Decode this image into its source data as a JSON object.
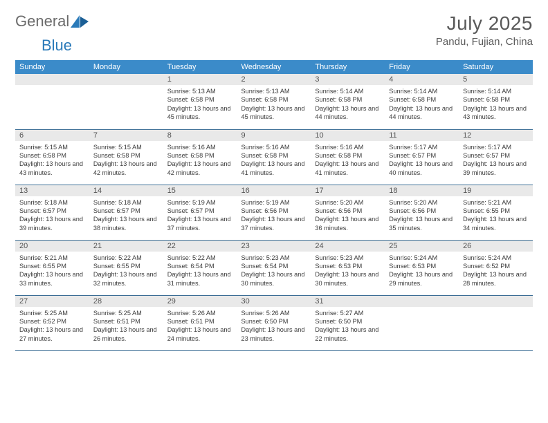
{
  "brand": {
    "name_a": "General",
    "name_b": "Blue"
  },
  "title": "July 2025",
  "location": "Pandu, Fujian, China",
  "colors": {
    "header_bg": "#3b8bc9",
    "header_fg": "#ffffff",
    "row_border": "#3b6d95",
    "daynum_bg": "#e9e9e9",
    "text": "#3a3a3a",
    "brand_gray": "#6b6b6b",
    "brand_blue": "#2a7ab9"
  },
  "day_headers": [
    "Sunday",
    "Monday",
    "Tuesday",
    "Wednesday",
    "Thursday",
    "Friday",
    "Saturday"
  ],
  "weeks": [
    [
      {
        "num": "",
        "sunrise": "",
        "sunset": "",
        "daylight": ""
      },
      {
        "num": "",
        "sunrise": "",
        "sunset": "",
        "daylight": ""
      },
      {
        "num": "1",
        "sunrise": "Sunrise: 5:13 AM",
        "sunset": "Sunset: 6:58 PM",
        "daylight": "Daylight: 13 hours and 45 minutes."
      },
      {
        "num": "2",
        "sunrise": "Sunrise: 5:13 AM",
        "sunset": "Sunset: 6:58 PM",
        "daylight": "Daylight: 13 hours and 45 minutes."
      },
      {
        "num": "3",
        "sunrise": "Sunrise: 5:14 AM",
        "sunset": "Sunset: 6:58 PM",
        "daylight": "Daylight: 13 hours and 44 minutes."
      },
      {
        "num": "4",
        "sunrise": "Sunrise: 5:14 AM",
        "sunset": "Sunset: 6:58 PM",
        "daylight": "Daylight: 13 hours and 44 minutes."
      },
      {
        "num": "5",
        "sunrise": "Sunrise: 5:14 AM",
        "sunset": "Sunset: 6:58 PM",
        "daylight": "Daylight: 13 hours and 43 minutes."
      }
    ],
    [
      {
        "num": "6",
        "sunrise": "Sunrise: 5:15 AM",
        "sunset": "Sunset: 6:58 PM",
        "daylight": "Daylight: 13 hours and 43 minutes."
      },
      {
        "num": "7",
        "sunrise": "Sunrise: 5:15 AM",
        "sunset": "Sunset: 6:58 PM",
        "daylight": "Daylight: 13 hours and 42 minutes."
      },
      {
        "num": "8",
        "sunrise": "Sunrise: 5:16 AM",
        "sunset": "Sunset: 6:58 PM",
        "daylight": "Daylight: 13 hours and 42 minutes."
      },
      {
        "num": "9",
        "sunrise": "Sunrise: 5:16 AM",
        "sunset": "Sunset: 6:58 PM",
        "daylight": "Daylight: 13 hours and 41 minutes."
      },
      {
        "num": "10",
        "sunrise": "Sunrise: 5:16 AM",
        "sunset": "Sunset: 6:58 PM",
        "daylight": "Daylight: 13 hours and 41 minutes."
      },
      {
        "num": "11",
        "sunrise": "Sunrise: 5:17 AM",
        "sunset": "Sunset: 6:57 PM",
        "daylight": "Daylight: 13 hours and 40 minutes."
      },
      {
        "num": "12",
        "sunrise": "Sunrise: 5:17 AM",
        "sunset": "Sunset: 6:57 PM",
        "daylight": "Daylight: 13 hours and 39 minutes."
      }
    ],
    [
      {
        "num": "13",
        "sunrise": "Sunrise: 5:18 AM",
        "sunset": "Sunset: 6:57 PM",
        "daylight": "Daylight: 13 hours and 39 minutes."
      },
      {
        "num": "14",
        "sunrise": "Sunrise: 5:18 AM",
        "sunset": "Sunset: 6:57 PM",
        "daylight": "Daylight: 13 hours and 38 minutes."
      },
      {
        "num": "15",
        "sunrise": "Sunrise: 5:19 AM",
        "sunset": "Sunset: 6:57 PM",
        "daylight": "Daylight: 13 hours and 37 minutes."
      },
      {
        "num": "16",
        "sunrise": "Sunrise: 5:19 AM",
        "sunset": "Sunset: 6:56 PM",
        "daylight": "Daylight: 13 hours and 37 minutes."
      },
      {
        "num": "17",
        "sunrise": "Sunrise: 5:20 AM",
        "sunset": "Sunset: 6:56 PM",
        "daylight": "Daylight: 13 hours and 36 minutes."
      },
      {
        "num": "18",
        "sunrise": "Sunrise: 5:20 AM",
        "sunset": "Sunset: 6:56 PM",
        "daylight": "Daylight: 13 hours and 35 minutes."
      },
      {
        "num": "19",
        "sunrise": "Sunrise: 5:21 AM",
        "sunset": "Sunset: 6:55 PM",
        "daylight": "Daylight: 13 hours and 34 minutes."
      }
    ],
    [
      {
        "num": "20",
        "sunrise": "Sunrise: 5:21 AM",
        "sunset": "Sunset: 6:55 PM",
        "daylight": "Daylight: 13 hours and 33 minutes."
      },
      {
        "num": "21",
        "sunrise": "Sunrise: 5:22 AM",
        "sunset": "Sunset: 6:55 PM",
        "daylight": "Daylight: 13 hours and 32 minutes."
      },
      {
        "num": "22",
        "sunrise": "Sunrise: 5:22 AM",
        "sunset": "Sunset: 6:54 PM",
        "daylight": "Daylight: 13 hours and 31 minutes."
      },
      {
        "num": "23",
        "sunrise": "Sunrise: 5:23 AM",
        "sunset": "Sunset: 6:54 PM",
        "daylight": "Daylight: 13 hours and 30 minutes."
      },
      {
        "num": "24",
        "sunrise": "Sunrise: 5:23 AM",
        "sunset": "Sunset: 6:53 PM",
        "daylight": "Daylight: 13 hours and 30 minutes."
      },
      {
        "num": "25",
        "sunrise": "Sunrise: 5:24 AM",
        "sunset": "Sunset: 6:53 PM",
        "daylight": "Daylight: 13 hours and 29 minutes."
      },
      {
        "num": "26",
        "sunrise": "Sunrise: 5:24 AM",
        "sunset": "Sunset: 6:52 PM",
        "daylight": "Daylight: 13 hours and 28 minutes."
      }
    ],
    [
      {
        "num": "27",
        "sunrise": "Sunrise: 5:25 AM",
        "sunset": "Sunset: 6:52 PM",
        "daylight": "Daylight: 13 hours and 27 minutes."
      },
      {
        "num": "28",
        "sunrise": "Sunrise: 5:25 AM",
        "sunset": "Sunset: 6:51 PM",
        "daylight": "Daylight: 13 hours and 26 minutes."
      },
      {
        "num": "29",
        "sunrise": "Sunrise: 5:26 AM",
        "sunset": "Sunset: 6:51 PM",
        "daylight": "Daylight: 13 hours and 24 minutes."
      },
      {
        "num": "30",
        "sunrise": "Sunrise: 5:26 AM",
        "sunset": "Sunset: 6:50 PM",
        "daylight": "Daylight: 13 hours and 23 minutes."
      },
      {
        "num": "31",
        "sunrise": "Sunrise: 5:27 AM",
        "sunset": "Sunset: 6:50 PM",
        "daylight": "Daylight: 13 hours and 22 minutes."
      },
      {
        "num": "",
        "sunrise": "",
        "sunset": "",
        "daylight": ""
      },
      {
        "num": "",
        "sunrise": "",
        "sunset": "",
        "daylight": ""
      }
    ]
  ]
}
